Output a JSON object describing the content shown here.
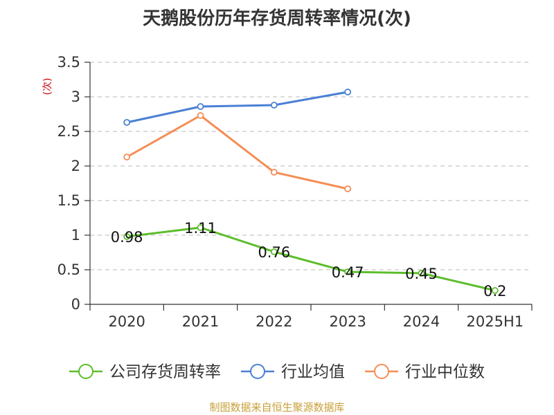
{
  "title": "天鹅股份历年存货周转率情况(次)",
  "source": "制图数据来自恒生聚源数据库",
  "chart_data": {
    "type": "line",
    "title": "天鹅股份历年存货周转率情况(次)",
    "ylabel": "(次)",
    "xlabel": "",
    "categories": [
      "2020",
      "2021",
      "2022",
      "2023",
      "2024",
      "2025H1"
    ],
    "ylim": [
      0,
      3.5
    ],
    "yticks": [
      "0",
      "0.5",
      "1",
      "1.5",
      "2",
      "2.5",
      "3",
      "3.5"
    ],
    "grid": true,
    "legend_position": "bottom",
    "series": [
      {
        "name": "公司存货周转率",
        "color": "#5cbd2a",
        "values": [
          0.98,
          1.11,
          0.76,
          0.47,
          0.45,
          0.2
        ],
        "labels": [
          "0.98",
          "1.11",
          "0.76",
          "0.47",
          "0.45",
          "0.2"
        ]
      },
      {
        "name": "行业均值",
        "color": "#4a7fd4",
        "values": [
          2.63,
          2.86,
          2.88,
          3.07,
          null,
          null
        ]
      },
      {
        "name": "行业中位数",
        "color": "#f58d55",
        "values": [
          2.13,
          2.73,
          1.91,
          1.67,
          null,
          null
        ]
      }
    ]
  }
}
